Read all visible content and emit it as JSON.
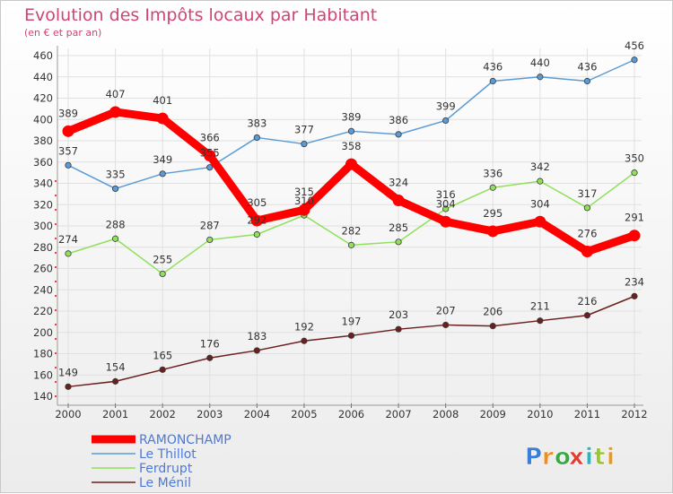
{
  "chart_data": {
    "type": "line",
    "title": "Evolution des Impôts locaux par Habitant",
    "subtitle": "(en € et par an)",
    "x": [
      "2000",
      "2001",
      "2002",
      "2003",
      "2004",
      "2005",
      "2006",
      "2007",
      "2008",
      "2009",
      "2010",
      "2011",
      "2012"
    ],
    "yticks": [
      140,
      160,
      180,
      200,
      220,
      240,
      260,
      280,
      300,
      320,
      340,
      360,
      380,
      400,
      420,
      440,
      460
    ],
    "ylim": [
      140,
      460
    ],
    "grid": true,
    "legend_position": "bottom-left",
    "series": [
      {
        "name": "RAMONCHAMP",
        "color": "#ff0000",
        "values": [
          389,
          407,
          401,
          366,
          305,
          315,
          358,
          324,
          304,
          295,
          304,
          276,
          291
        ]
      },
      {
        "name": "Le Thillot",
        "color": "#5b9bd5",
        "values": [
          357,
          335,
          349,
          355,
          383,
          377,
          389,
          386,
          399,
          436,
          440,
          436,
          456
        ]
      },
      {
        "name": "Ferdrupt",
        "color": "#8fe05a",
        "values": [
          274,
          288,
          255,
          287,
          292,
          310,
          282,
          285,
          316,
          336,
          342,
          317,
          350
        ]
      },
      {
        "name": "Le Ménil",
        "color": "#6b1f1f",
        "values": [
          149,
          154,
          165,
          176,
          183,
          192,
          197,
          203,
          207,
          206,
          211,
          216,
          234
        ]
      }
    ]
  },
  "brand": {
    "letters": [
      "P",
      "r",
      "o",
      "x",
      "i",
      "t",
      "i"
    ],
    "colors": [
      "#3b7dd8",
      "#f28c1e",
      "#3aa845",
      "#e63a2e",
      "#2bb3c0",
      "#9bc43a",
      "#e69a1f"
    ]
  }
}
